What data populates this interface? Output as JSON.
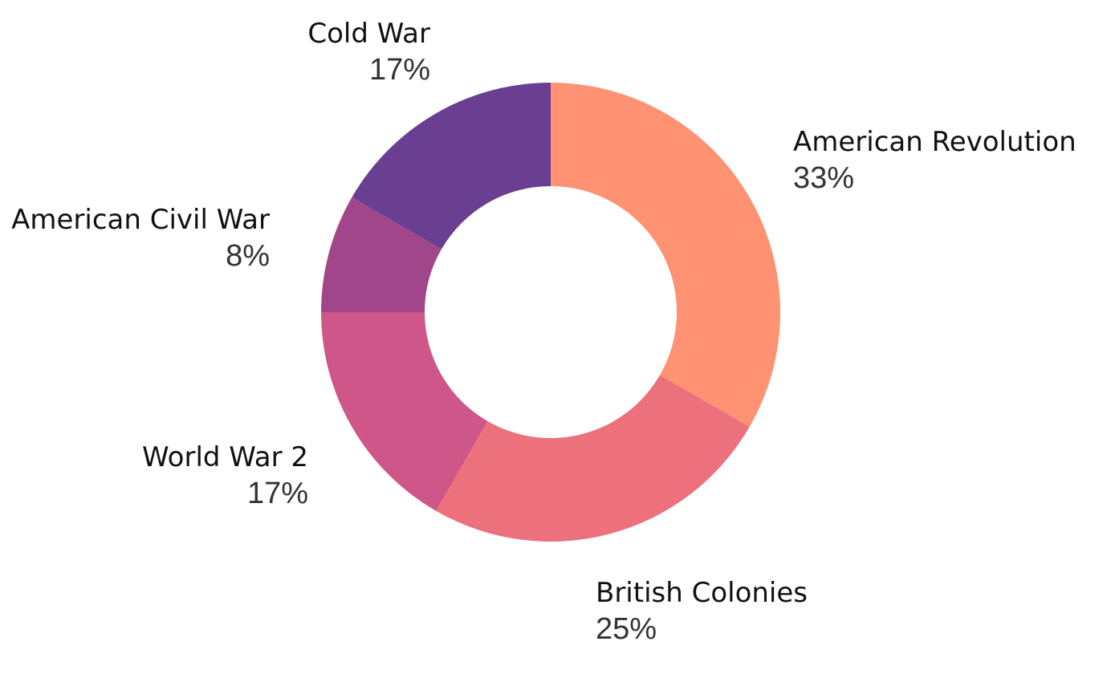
{
  "chart_data": {
    "type": "pie",
    "donut": true,
    "categories": [
      "American Revolution",
      "British Colonies",
      "World War 2",
      "American Civil War",
      "Cold War"
    ],
    "values": [
      33.33,
      25.0,
      16.67,
      8.33,
      16.67
    ],
    "value_labels": [
      "33%",
      "25%",
      "17%",
      "8%",
      "17%"
    ],
    "colors": [
      "#FF9272",
      "#EC717C",
      "#CE5688",
      "#A2468C",
      "#6A3E90"
    ],
    "start_angle_deg": 0,
    "direction": "clockwise",
    "legend": "none"
  }
}
